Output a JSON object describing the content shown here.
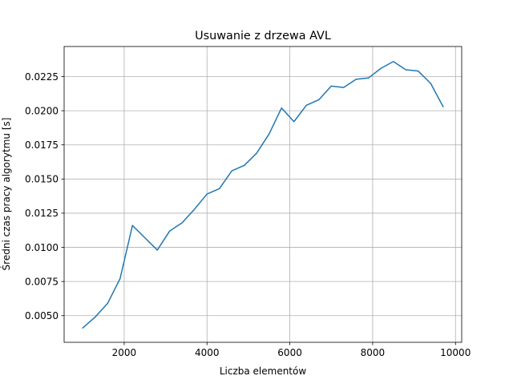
{
  "chart_data": {
    "type": "line",
    "title": "Usuwanie z drzewa AVL",
    "xlabel": "Liczba elementów",
    "ylabel": "Średni czas pracy algorytmu [s]",
    "xlim": [
      550,
      10150
    ],
    "ylim": [
      0.00305,
      0.0247
    ],
    "grid": true,
    "xticks": [
      2000,
      4000,
      6000,
      8000,
      10000
    ],
    "xtick_labels": [
      "2000",
      "4000",
      "6000",
      "8000",
      "10000"
    ],
    "yticks": [
      0.005,
      0.0075,
      0.01,
      0.0125,
      0.015,
      0.0175,
      0.02,
      0.0225
    ],
    "ytick_labels": [
      "0.0050",
      "0.0075",
      "0.0100",
      "0.0125",
      "0.0150",
      "0.0175",
      "0.0200",
      "0.0225"
    ],
    "series": [
      {
        "color": "#1f77b4",
        "x": [
          1000,
          1300,
          1600,
          1900,
          2200,
          2500,
          2800,
          3100,
          3400,
          3700,
          4000,
          4300,
          4600,
          4900,
          5200,
          5500,
          5800,
          6100,
          6400,
          6700,
          7000,
          7300,
          7600,
          7900,
          8200,
          8500,
          8800,
          9100,
          9400,
          9700
        ],
        "y": [
          0.0041,
          0.0049,
          0.0059,
          0.0077,
          0.0116,
          0.0107,
          0.0098,
          0.0112,
          0.0118,
          0.0128,
          0.0139,
          0.0143,
          0.0156,
          0.016,
          0.0169,
          0.0183,
          0.0202,
          0.0192,
          0.0204,
          0.0208,
          0.0218,
          0.0217,
          0.0223,
          0.0224,
          0.0231,
          0.0236,
          0.023,
          0.0229,
          0.022,
          0.0203
        ]
      }
    ]
  }
}
